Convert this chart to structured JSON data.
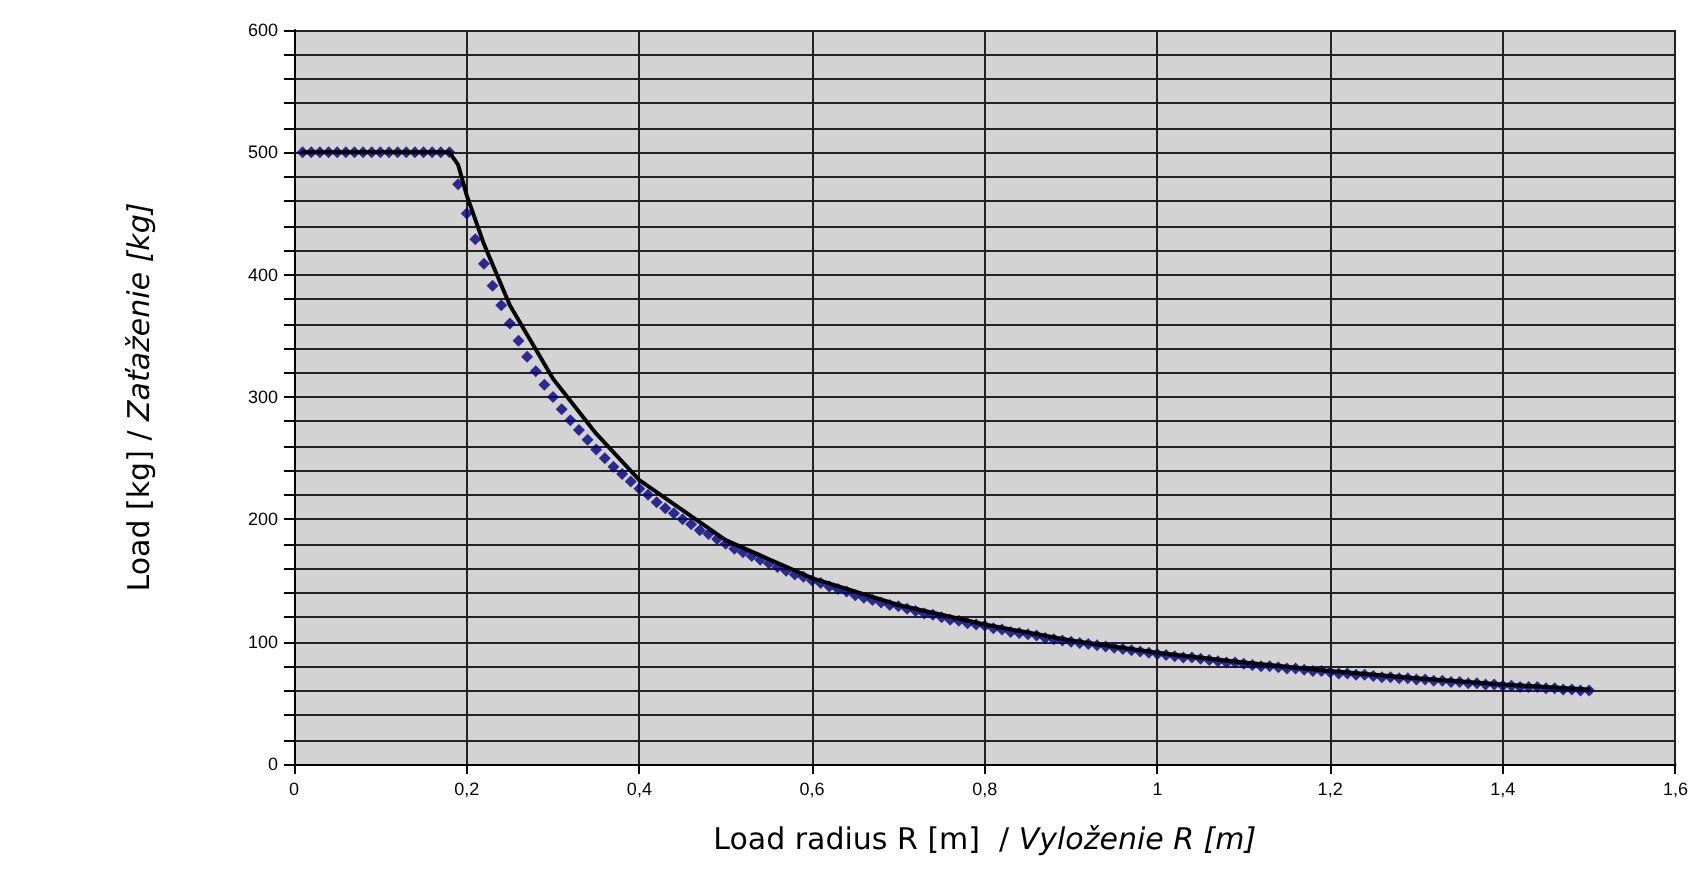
{
  "chart_data": {
    "type": "scatter",
    "xlabel": "Load radius R [m]  / Vyloženie R [m]",
    "ylabel": "Load [kg] / Zaťaženie [kg]",
    "xlim": [
      0,
      1.6
    ],
    "ylim": [
      0,
      600
    ],
    "xticks": [
      0,
      {
        "value": 0.2,
        "label": "0,2"
      },
      {
        "value": 0.4,
        "label": "0,4"
      },
      {
        "value": 0.6,
        "label": "0,6"
      },
      {
        "value": 0.8,
        "label": "0,8"
      },
      1,
      {
        "value": 1.2,
        "label": "1,2"
      },
      {
        "value": 1.4,
        "label": "1,4"
      },
      {
        "value": 1.6,
        "label": "1,6"
      }
    ],
    "yticks": [
      0,
      {
        "value": 20,
        "label": null
      },
      {
        "value": 40,
        "label": null
      },
      {
        "value": 60,
        "label": null
      },
      {
        "value": 80,
        "label": null
      },
      100,
      {
        "value": 120,
        "label": null
      },
      {
        "value": 140,
        "label": null
      },
      {
        "value": 160,
        "label": null
      },
      {
        "value": 180,
        "label": null
      },
      200,
      {
        "value": 220,
        "label": null
      },
      {
        "value": 240,
        "label": null
      },
      {
        "value": 260,
        "label": null
      },
      {
        "value": 280,
        "label": null
      },
      300,
      {
        "value": 320,
        "label": null
      },
      {
        "value": 340,
        "label": null
      },
      {
        "value": 360,
        "label": null
      },
      {
        "value": 380,
        "label": null
      },
      400,
      {
        "value": 420,
        "label": null
      },
      {
        "value": 440,
        "label": null
      },
      {
        "value": 460,
        "label": null
      },
      {
        "value": 480,
        "label": null
      },
      500,
      {
        "value": 520,
        "label": null
      },
      {
        "value": 540,
        "label": null
      },
      {
        "value": 560,
        "label": null
      },
      {
        "value": 580,
        "label": null
      },
      600
    ],
    "grid": true,
    "series": [
      {
        "type": "line",
        "color": "#000000",
        "marker": "none",
        "line_style": "solid",
        "x": [
          0.01,
          0.18,
          0.19,
          0.2,
          0.22,
          0.25,
          0.3,
          0.35,
          0.4,
          0.5,
          0.6,
          0.7,
          0.8,
          0.9,
          1.0,
          1.1,
          1.2,
          1.3,
          1.4,
          1.5
        ],
        "values": [
          500,
          500,
          490,
          465,
          425,
          375,
          315,
          270,
          232,
          183,
          152,
          130,
          114,
          101,
          91,
          83,
          76,
          70,
          65,
          61
        ]
      },
      {
        "type": "scatter",
        "color": "#000080",
        "marker": "diamond",
        "x": [
          0.01,
          0.02,
          0.03,
          0.04,
          0.05,
          0.06,
          0.07,
          0.08,
          0.09,
          0.1,
          0.11,
          0.12,
          0.13,
          0.14,
          0.15,
          0.16,
          0.17,
          0.18,
          0.19,
          0.2,
          0.21,
          0.22,
          0.23,
          0.24,
          0.25,
          0.26,
          0.27,
          0.28,
          0.29,
          0.3,
          0.31,
          0.32,
          0.33,
          0.34,
          0.35,
          0.36,
          0.37,
          0.38,
          0.39,
          0.4,
          0.41,
          0.42,
          0.43,
          0.44,
          0.45,
          0.46,
          0.47,
          0.48,
          0.49,
          0.5,
          0.51,
          0.52,
          0.53,
          0.54,
          0.55,
          0.56,
          0.57,
          0.58,
          0.59,
          0.6,
          0.61,
          0.62,
          0.63,
          0.64,
          0.65,
          0.66,
          0.67,
          0.68,
          0.69,
          0.7,
          0.71,
          0.72,
          0.73,
          0.74,
          0.75,
          0.76,
          0.77,
          0.78,
          0.79,
          0.8,
          0.81,
          0.82,
          0.83,
          0.84,
          0.85,
          0.86,
          0.87,
          0.88,
          0.89,
          0.9,
          0.91,
          0.92,
          0.93,
          0.94,
          0.95,
          0.96,
          0.97,
          0.98,
          0.99,
          1.0,
          1.01,
          1.02,
          1.03,
          1.04,
          1.05,
          1.06,
          1.07,
          1.08,
          1.09,
          1.1,
          1.11,
          1.12,
          1.13,
          1.14,
          1.15,
          1.16,
          1.17,
          1.18,
          1.19,
          1.2,
          1.21,
          1.22,
          1.23,
          1.24,
          1.25,
          1.26,
          1.27,
          1.28,
          1.29,
          1.3,
          1.31,
          1.32,
          1.33,
          1.34,
          1.35,
          1.36,
          1.37,
          1.38,
          1.39,
          1.4,
          1.41,
          1.42,
          1.43,
          1.44,
          1.45,
          1.46,
          1.47,
          1.48,
          1.49,
          1.5
        ],
        "values": [
          500,
          500,
          500,
          500,
          500,
          500,
          500,
          500,
          500,
          500,
          500,
          500,
          500,
          500,
          500,
          500,
          500,
          500,
          474,
          450,
          429,
          409,
          391,
          375,
          360,
          346,
          333,
          321,
          310,
          300,
          290,
          281,
          273,
          265,
          257,
          250,
          243,
          237,
          231,
          225,
          220,
          214,
          209,
          205,
          200,
          196,
          191,
          188,
          184,
          180,
          176,
          173,
          170,
          167,
          164,
          161,
          158,
          155,
          153,
          150,
          148,
          145,
          143,
          141,
          138,
          136,
          134,
          132,
          130,
          129,
          127,
          125,
          123,
          122,
          120,
          118,
          117,
          115,
          114,
          113,
          111,
          110,
          108,
          107,
          106,
          105,
          103,
          102,
          101,
          100,
          99,
          98,
          97,
          96,
          95,
          94,
          93,
          92,
          91,
          90,
          89,
          88,
          87,
          87,
          86,
          85,
          84,
          83,
          83,
          82,
          81,
          80,
          80,
          79,
          78,
          78,
          77,
          76,
          76,
          75,
          74,
          74,
          73,
          73,
          72,
          71,
          71,
          70,
          70,
          69,
          69,
          68,
          68,
          67,
          67,
          66,
          66,
          65,
          65,
          64,
          64,
          63,
          63,
          63,
          62,
          62,
          61,
          61,
          60,
          60
        ]
      }
    ]
  }
}
